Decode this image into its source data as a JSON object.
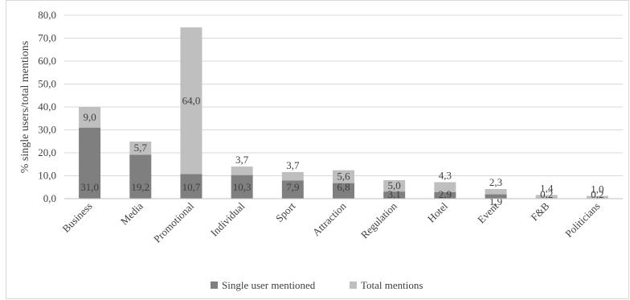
{
  "chart_data": {
    "type": "bar",
    "stacked": true,
    "categories": [
      "Business",
      "Media",
      "Promotional",
      "Individual",
      "Sport",
      "Attraction",
      "Regulation",
      "Hotel",
      "Event",
      "F&B",
      "Politicians"
    ],
    "series": [
      {
        "name": "Single user mentioned",
        "color": "#7f7f7f",
        "values": [
          31.0,
          19.2,
          10.7,
          10.3,
          7.9,
          6.8,
          3.1,
          2.9,
          1.9,
          0.2,
          0.2
        ],
        "labels": [
          "31,0",
          "19,2",
          "10,7",
          "10,3",
          "7,9",
          "6,8",
          "3,1",
          "2,9",
          "1,9",
          "0,2",
          "0,2"
        ]
      },
      {
        "name": "Total mentions",
        "color": "#bfbfbf",
        "values": [
          9.0,
          5.7,
          64.0,
          3.7,
          3.7,
          5.6,
          5.0,
          4.3,
          2.3,
          1.4,
          1.0
        ],
        "labels": [
          "9,0",
          "5,7",
          "64,0",
          "3,7",
          "3,7",
          "5,6",
          "5,0",
          "4,3",
          "2,3",
          "1,4",
          "1,0"
        ]
      }
    ],
    "ylabel": "% single users/total mentions",
    "ylim": [
      0,
      80
    ],
    "yticks": [
      "0,0",
      "10,0",
      "20,0",
      "30,0",
      "40,0",
      "50,0",
      "60,0",
      "70,0",
      "80,0"
    ],
    "grid": true,
    "legend_position": "bottom"
  }
}
